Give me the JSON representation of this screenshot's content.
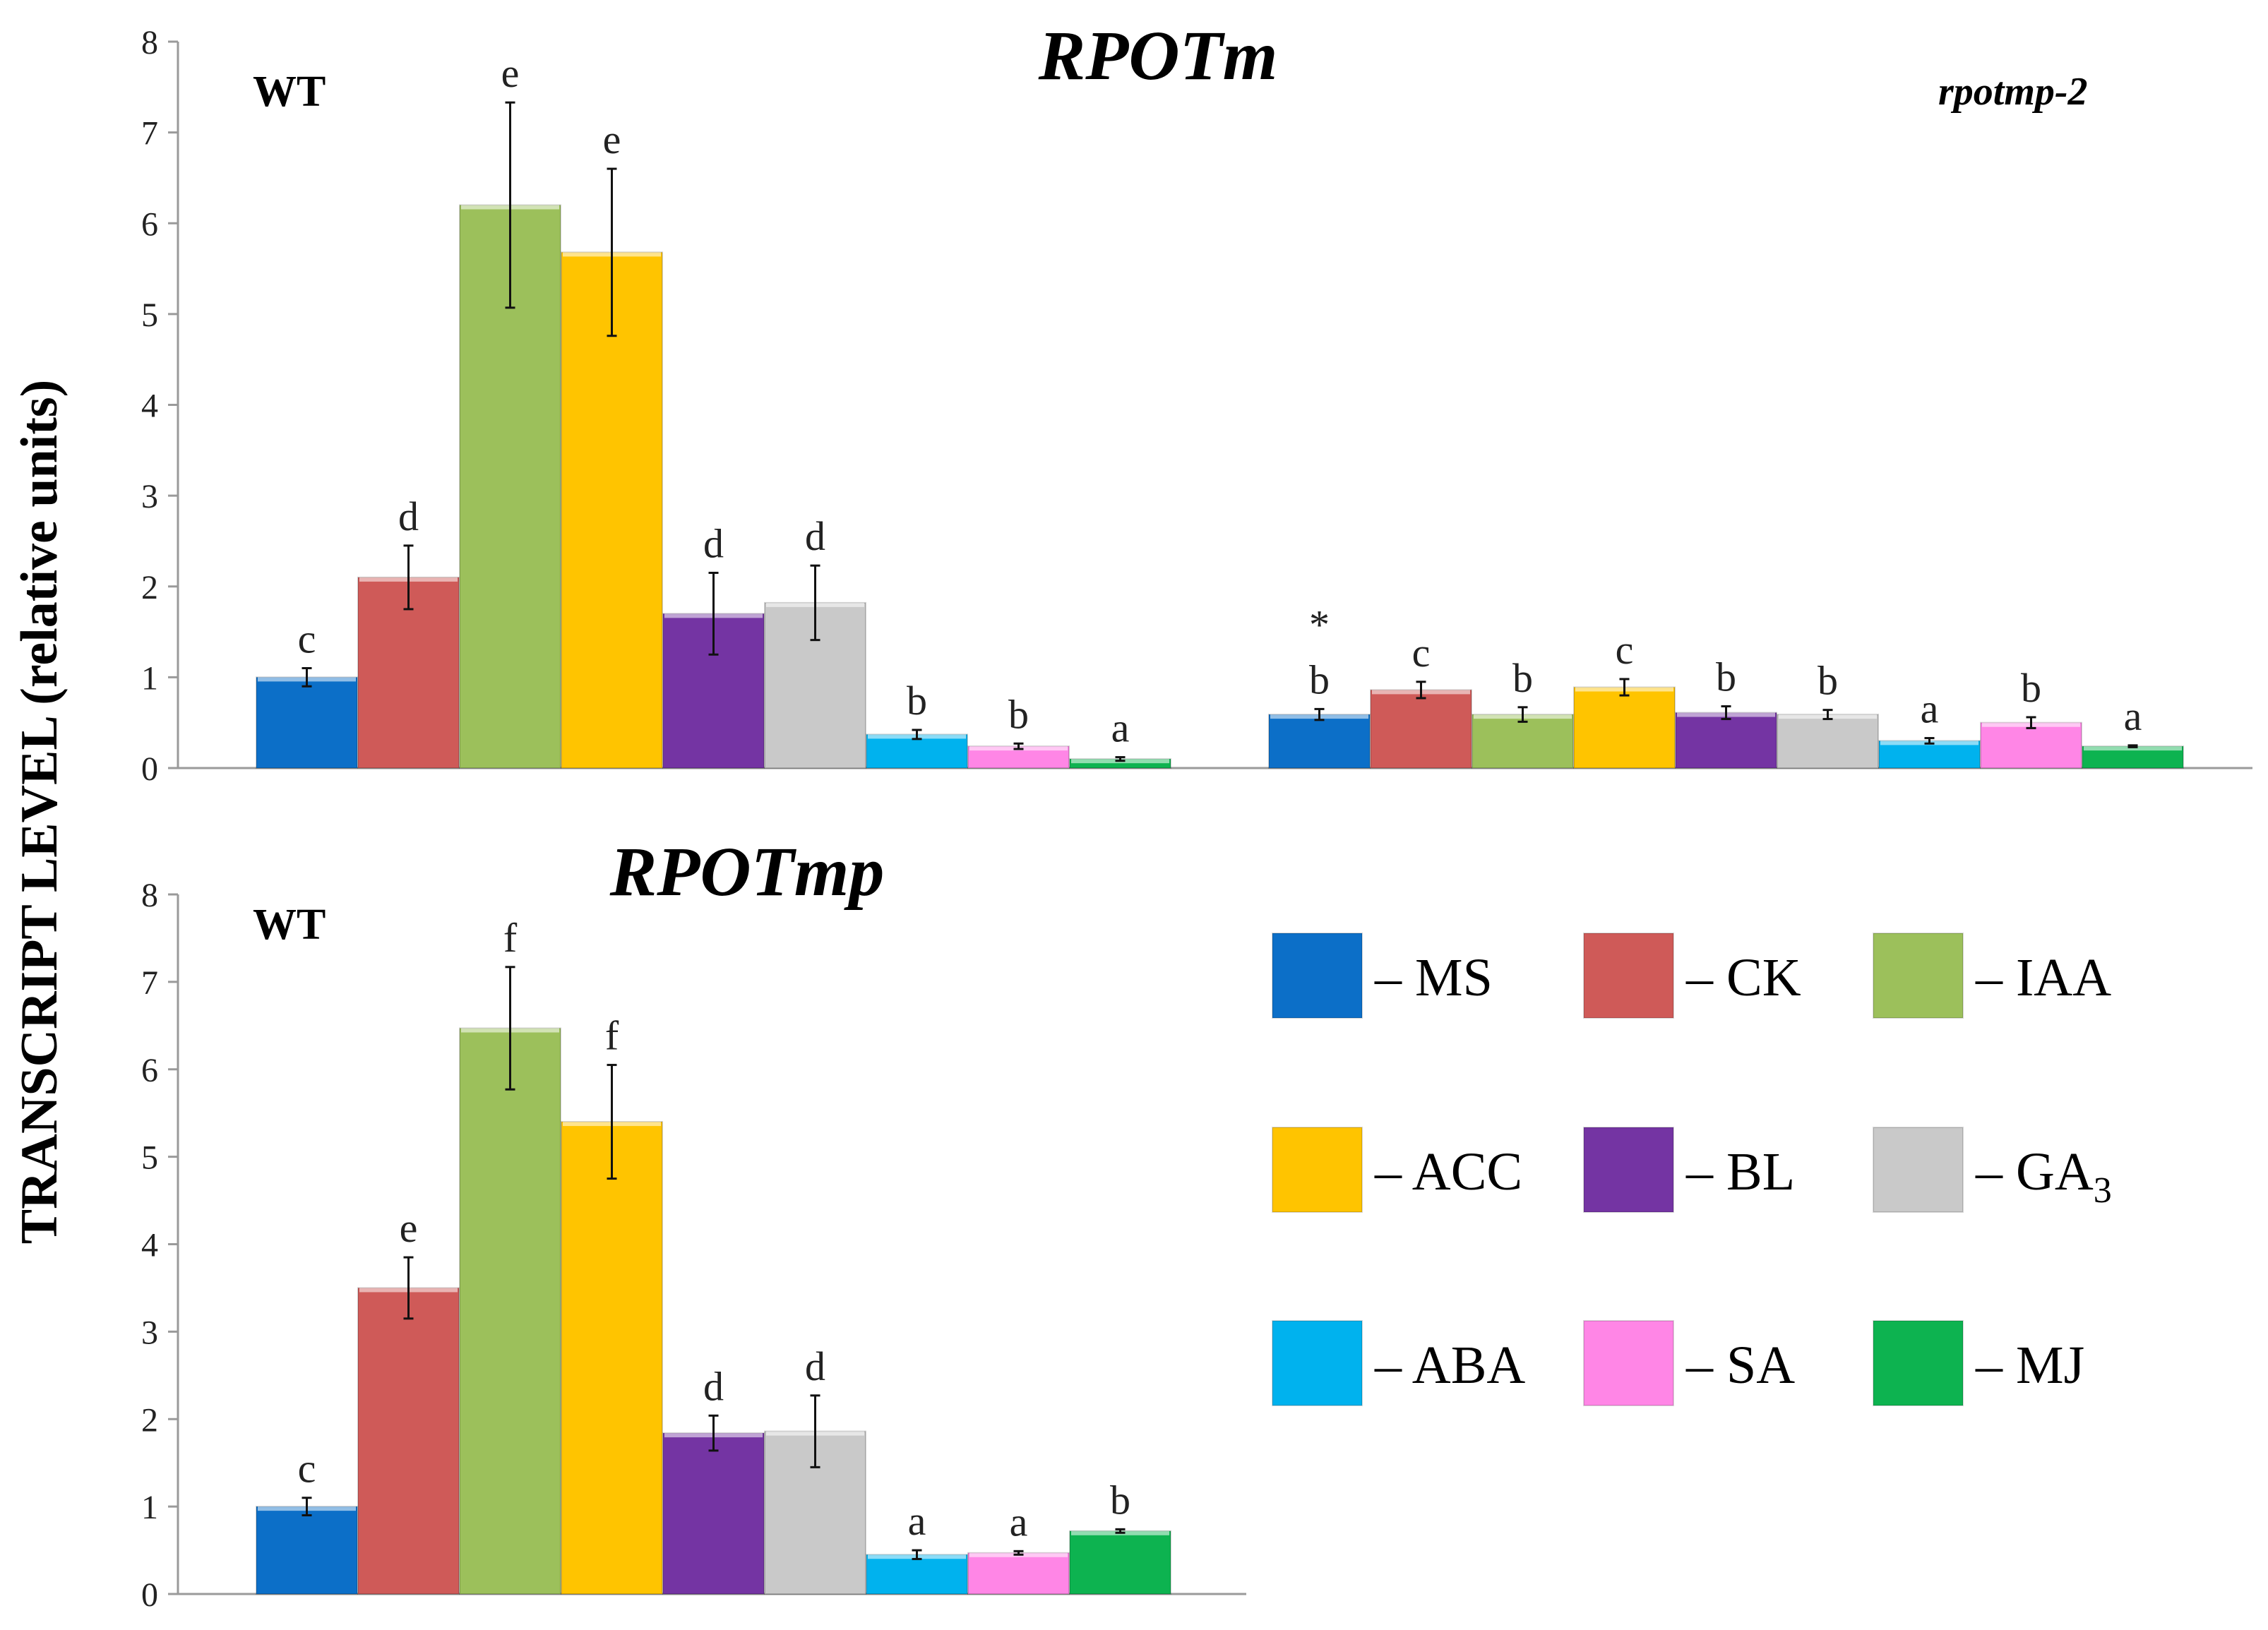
{
  "y_axis_label": "TRANSCRIPT LEVEL (relative units)",
  "legend": [
    {
      "label": "MS",
      "color": "#0C6FC8"
    },
    {
      "label": "CK",
      "color": "#CF5A58"
    },
    {
      "label": "IAA",
      "color": "#9CC05B"
    },
    {
      "label": "ACC",
      "color": "#FFC400"
    },
    {
      "label": "BL",
      "color": "#7434A3"
    },
    {
      "label": "GA",
      "sub": "3",
      "color": "#C9C9C9"
    },
    {
      "label": "ABA",
      "color": "#00B2EE"
    },
    {
      "label": "SA",
      "color": "#FF86E6"
    },
    {
      "label": "MJ",
      "color": "#0DB350"
    }
  ],
  "chart_data": [
    {
      "type": "bar",
      "title": "RPOTm",
      "genotype": "WT",
      "categories": [
        "MS",
        "CK",
        "IAA",
        "ACC",
        "BL",
        "GA3",
        "ABA",
        "SA",
        "MJ"
      ],
      "values": [
        1.0,
        2.1,
        6.2,
        5.68,
        1.7,
        1.82,
        0.37,
        0.24,
        0.1
      ],
      "errors": [
        0.1,
        0.35,
        1.13,
        0.92,
        0.45,
        0.41,
        0.05,
        0.03,
        0.02
      ],
      "letters": [
        "c",
        "d",
        "e",
        "e",
        "d",
        "d",
        "b",
        "b",
        "a"
      ],
      "ylim": [
        0,
        8
      ],
      "yticks": [
        "0",
        "1",
        "2",
        "3",
        "4",
        "5",
        "6",
        "7",
        "8"
      ]
    },
    {
      "type": "bar",
      "title": "RPOTm",
      "genotype": "rpotmp-2",
      "categories": [
        "MS",
        "CK",
        "IAA",
        "ACC",
        "BL",
        "GA3",
        "ABA",
        "SA",
        "MJ"
      ],
      "values": [
        0.59,
        0.86,
        0.59,
        0.89,
        0.61,
        0.59,
        0.3,
        0.5,
        0.24
      ],
      "errors": [
        0.06,
        0.09,
        0.08,
        0.09,
        0.07,
        0.05,
        0.03,
        0.06,
        0.01
      ],
      "letters": [
        "b",
        "c",
        "b",
        "c",
        "b",
        "b",
        "a",
        "b",
        "a"
      ],
      "annotation": "*",
      "ylim": [
        0,
        8
      ]
    },
    {
      "type": "bar",
      "title": "RPOTmp",
      "genotype": "WT",
      "categories": [
        "MS",
        "CK",
        "IAA",
        "ACC",
        "BL",
        "GA3",
        "ABA",
        "SA",
        "MJ"
      ],
      "values": [
        1.0,
        3.5,
        6.47,
        5.4,
        1.84,
        1.86,
        0.45,
        0.47,
        0.72
      ],
      "errors": [
        0.1,
        0.35,
        0.7,
        0.65,
        0.2,
        0.41,
        0.05,
        0.02,
        0.02
      ],
      "letters": [
        "c",
        "e",
        "f",
        "f",
        "d",
        "d",
        "a",
        "a",
        "b"
      ],
      "ylim": [
        0,
        8
      ],
      "yticks": [
        "0",
        "1",
        "2",
        "3",
        "4",
        "5",
        "6",
        "7",
        "8"
      ]
    }
  ]
}
